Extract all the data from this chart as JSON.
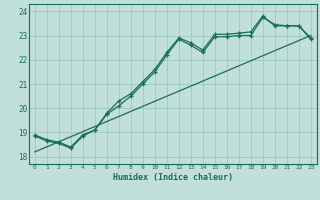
{
  "xlabel": "Humidex (Indice chaleur)",
  "bg_color": "#c2e0da",
  "line_color": "#1a6b60",
  "grid_color": "#9ecdc5",
  "xlim": [
    -0.5,
    23.5
  ],
  "ylim": [
    17.7,
    24.3
  ],
  "xticks": [
    0,
    1,
    2,
    3,
    4,
    5,
    6,
    7,
    8,
    9,
    10,
    11,
    12,
    13,
    14,
    15,
    16,
    17,
    18,
    19,
    20,
    21,
    22,
    23
  ],
  "yticks": [
    18,
    19,
    20,
    21,
    22,
    23,
    24
  ],
  "line1_x": [
    0,
    1,
    2,
    3,
    4,
    5,
    6,
    7,
    8,
    9,
    10,
    11,
    12,
    13,
    14,
    15,
    16,
    17,
    18,
    19,
    20,
    21,
    22,
    23
  ],
  "line1_y": [
    18.9,
    18.7,
    18.6,
    18.4,
    18.9,
    19.1,
    19.8,
    20.3,
    20.6,
    21.1,
    21.6,
    22.3,
    22.9,
    22.7,
    22.4,
    23.05,
    23.05,
    23.1,
    23.15,
    23.8,
    23.4,
    23.4,
    23.4,
    22.9
  ],
  "line2_x": [
    0,
    1,
    2,
    3,
    4,
    5,
    6,
    7,
    8,
    9,
    10,
    11,
    12,
    13,
    14,
    15,
    16,
    17,
    18,
    19,
    20,
    21,
    22,
    23
  ],
  "line2_y": [
    18.85,
    18.65,
    18.55,
    18.35,
    18.85,
    19.1,
    19.75,
    20.1,
    20.5,
    21.0,
    21.5,
    22.2,
    22.85,
    22.6,
    22.3,
    22.95,
    22.95,
    23.0,
    23.0,
    23.75,
    23.45,
    23.4,
    23.4,
    22.85
  ],
  "trend_x": [
    0,
    23
  ],
  "trend_y": [
    18.2,
    23.0
  ],
  "font_family": "monospace"
}
